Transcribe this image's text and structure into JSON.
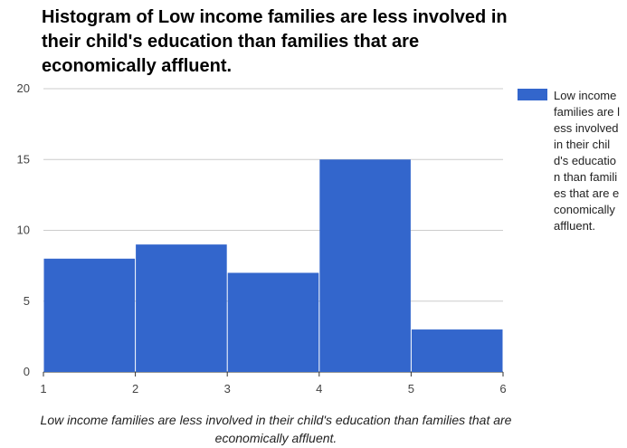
{
  "chart_data": {
    "type": "bar",
    "title": "Histogram of Low income families are less involved in their child's education than families that are economically affluent.",
    "xlabel": "Low income families are less involved in their child's education than families that are economically affluent.",
    "ylabel": "",
    "x_ticks": [
      "1",
      "2",
      "3",
      "4",
      "5",
      "6"
    ],
    "y_ticks": [
      "0",
      "5",
      "10",
      "15",
      "20"
    ],
    "ylim": [
      0,
      20
    ],
    "xlim": [
      1,
      6
    ],
    "bins": [
      [
        1,
        2
      ],
      [
        2,
        3
      ],
      [
        3,
        4
      ],
      [
        4,
        5
      ],
      [
        5,
        6
      ]
    ],
    "values": [
      8,
      9,
      7,
      15,
      3
    ],
    "grid": true,
    "legend_position": "right",
    "series": [
      {
        "name": "Low income families are less involved in their child's education than families that are economically affluent.",
        "color": "#3366cc",
        "values": [
          8,
          9,
          7,
          15,
          3
        ]
      }
    ]
  },
  "legend": {
    "label": "Low income families are less involved in their child's education than families that are economically affluent."
  }
}
